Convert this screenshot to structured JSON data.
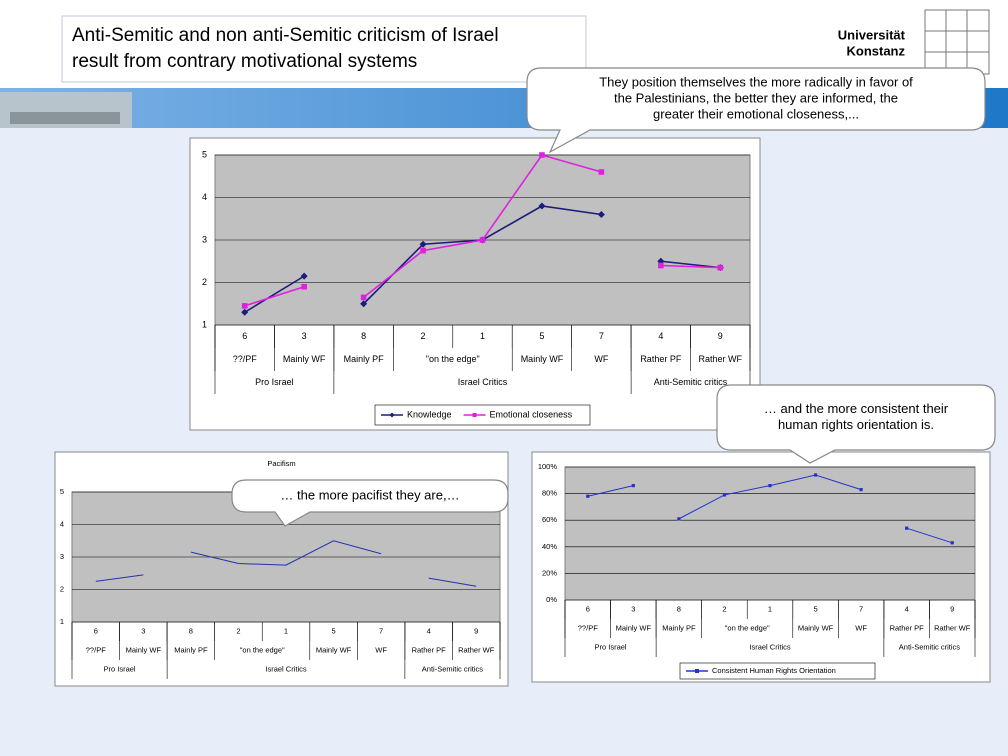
{
  "header": {
    "title": [
      "Anti-Semitic and non anti-Semitic criticism of Israel",
      "result from contrary motivational systems"
    ],
    "logo": [
      "Universität",
      "Konstanz"
    ]
  },
  "callouts": [
    {
      "lines": [
        "They position themselves the more radically in favor of",
        "the Palestinians, the better they are informed, the",
        "greater their emotional closeness,..."
      ]
    },
    {
      "lines": [
        "… and the more consistent their",
        "human rights orientation is."
      ]
    },
    {
      "lines": [
        "… the more pacifist they are,…"
      ]
    }
  ],
  "chart_data": [
    {
      "type": "line",
      "categories": [
        "6",
        "3",
        "8",
        "2",
        "1",
        "5",
        "7",
        "4",
        "9"
      ],
      "subcategories": [
        "??/PF",
        "Mainly WF",
        "Mainly PF",
        "\"on the edge\"",
        null,
        "Mainly WF",
        "WF",
        "Rather PF",
        "Rather WF"
      ],
      "groups": [
        "Pro Israel",
        null,
        "Israel Critics",
        null,
        null,
        null,
        null,
        "Anti-Semitic critics",
        null
      ],
      "series": [
        {
          "name": "Knowledge",
          "color": "#1c1c7a",
          "marker": "diamond",
          "values": [
            1.3,
            2.15,
            1.5,
            2.9,
            3.0,
            3.8,
            3.6,
            2.5,
            2.35
          ]
        },
        {
          "name": "Emotional closeness",
          "color": "#e020e0",
          "marker": "square",
          "values": [
            1.45,
            1.9,
            1.65,
            2.75,
            3.0,
            5.0,
            4.6,
            2.4,
            2.35
          ]
        }
      ],
      "ylim": [
        1,
        5
      ],
      "yticks": [
        1,
        2,
        3,
        4,
        5
      ],
      "grid": true,
      "legend": "bottom"
    },
    {
      "type": "line",
      "title": "Pacifism",
      "categories": [
        "6",
        "3",
        "8",
        "2",
        "1",
        "5",
        "7",
        "4",
        "9"
      ],
      "subcategories": [
        "??/PF",
        "Mainly WF",
        "Mainly PF",
        "\"on the edge\"",
        null,
        "Mainly WF",
        "WF",
        "Rather PF",
        "Rather WF"
      ],
      "groups": [
        "Pro Israel",
        null,
        "Israel Critics",
        null,
        null,
        null,
        null,
        "Anti-Semitic critics",
        null
      ],
      "series": [
        {
          "color": "#2233aa",
          "values": [
            2.25,
            2.45,
            3.15,
            2.8,
            2.75,
            3.5,
            3.1,
            2.35,
            2.1
          ]
        }
      ],
      "ylim": [
        1,
        5
      ],
      "yticks": [
        1,
        2,
        3,
        4,
        5
      ],
      "grid": true
    },
    {
      "type": "line",
      "categories": [
        "6",
        "3",
        "8",
        "2",
        "1",
        "5",
        "7",
        "4",
        "9"
      ],
      "subcategories": [
        "??/PF",
        "Mainly WF",
        "Mainly PF",
        "\"on the edge\"",
        null,
        "Mainly WF",
        "WF",
        "Rather PF",
        "Rather WF"
      ],
      "groups": [
        "Pro Israel",
        null,
        "Israel Critics",
        null,
        null,
        null,
        null,
        "Anti-Semitic critics",
        null
      ],
      "series": [
        {
          "name": "Consistent Human Rights Orientation",
          "color": "#2233cc",
          "marker": "square",
          "values": [
            78,
            86,
            61,
            79,
            86,
            94,
            83,
            54,
            43
          ]
        }
      ],
      "ylim": [
        0,
        100
      ],
      "yticks": [
        {
          "value": 0,
          "label": "0%"
        },
        {
          "value": 20,
          "label": "20%"
        },
        {
          "value": 40,
          "label": "40%"
        },
        {
          "value": 60,
          "label": "60%"
        },
        {
          "value": 80,
          "label": "80%"
        },
        {
          "value": 100,
          "label": "100%"
        }
      ],
      "grid": true,
      "legend": "bottom"
    }
  ]
}
